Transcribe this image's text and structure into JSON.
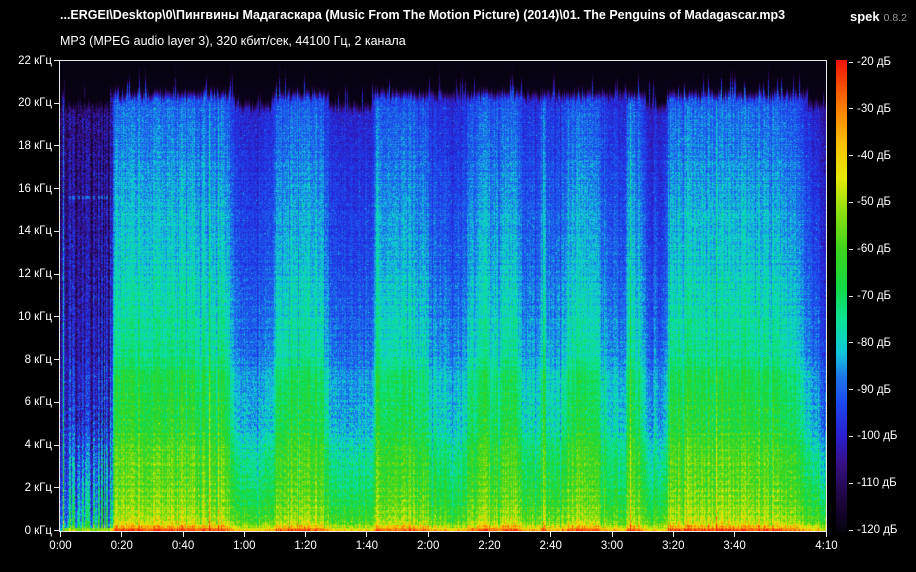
{
  "app": {
    "name": "spek",
    "version": "0.8.2"
  },
  "header": {
    "file_title": "...ERGEI\\Desktop\\0\\Пингвины Мадагаскара (Music From The Motion Picture) (2014)\\01. The Penguins of Madagascar.mp3",
    "format_info": "MP3 (MPEG audio layer 3), 320 кбит/сек, 44100 Гц, 2 канала"
  },
  "colors": {
    "background": "#000000",
    "text": "#ffffff",
    "version_text": "#9a9a9a",
    "axis": "#e9e9e9"
  },
  "chart_data": {
    "type": "heatmap",
    "kind": "audio-spectrogram",
    "title": "",
    "xlabel": "time",
    "ylabel": "frequency",
    "duration_seconds": 250,
    "x_ticks": [
      {
        "label": "0:00",
        "t": 0
      },
      {
        "label": "0:20",
        "t": 20
      },
      {
        "label": "0:40",
        "t": 40
      },
      {
        "label": "1:00",
        "t": 60
      },
      {
        "label": "1:20",
        "t": 80
      },
      {
        "label": "1:40",
        "t": 100
      },
      {
        "label": "2:00",
        "t": 120
      },
      {
        "label": "2:20",
        "t": 140
      },
      {
        "label": "2:40",
        "t": 160
      },
      {
        "label": "3:00",
        "t": 180
      },
      {
        "label": "3:20",
        "t": 200
      },
      {
        "label": "3:40",
        "t": 220
      },
      {
        "label": "4:10",
        "t": 250
      }
    ],
    "y_range_khz": [
      0,
      22
    ],
    "y_ticks": [
      {
        "label": "22 кГц",
        "khz": 22
      },
      {
        "label": "20 кГц",
        "khz": 20
      },
      {
        "label": "18 кГц",
        "khz": 18
      },
      {
        "label": "16 кГц",
        "khz": 16
      },
      {
        "label": "14 кГц",
        "khz": 14
      },
      {
        "label": "12 кГц",
        "khz": 12
      },
      {
        "label": "10 кГц",
        "khz": 10
      },
      {
        "label": "8 кГц",
        "khz": 8
      },
      {
        "label": "6 кГц",
        "khz": 6
      },
      {
        "label": "4 кГц",
        "khz": 4
      },
      {
        "label": "2 кГц",
        "khz": 2
      },
      {
        "label": "0 кГц",
        "khz": 0
      }
    ],
    "db_range": [
      -120,
      -20
    ],
    "db_ticks": [
      {
        "label": "-20 дБ",
        "db": -20
      },
      {
        "label": "-30 дБ",
        "db": -30
      },
      {
        "label": "-40 дБ",
        "db": -40
      },
      {
        "label": "-50 дБ",
        "db": -50
      },
      {
        "label": "-60 дБ",
        "db": -60
      },
      {
        "label": "-70 дБ",
        "db": -70
      },
      {
        "label": "-80 дБ",
        "db": -80
      },
      {
        "label": "-90 дБ",
        "db": -90
      },
      {
        "label": "-100 дБ",
        "db": -100
      },
      {
        "label": "-110 дБ",
        "db": -110
      },
      {
        "label": "-120 дБ",
        "db": -120
      }
    ],
    "palette": [
      [
        0.0,
        "#060210"
      ],
      [
        0.07,
        "#1e0640"
      ],
      [
        0.14,
        "#36107e"
      ],
      [
        0.2,
        "#2a1ecf"
      ],
      [
        0.27,
        "#1c46ee"
      ],
      [
        0.33,
        "#1e78e8"
      ],
      [
        0.38,
        "#10c8dc"
      ],
      [
        0.45,
        "#0ce396"
      ],
      [
        0.52,
        "#12d943"
      ],
      [
        0.6,
        "#3fd41c"
      ],
      [
        0.68,
        "#8fdf10"
      ],
      [
        0.75,
        "#e6ea08"
      ],
      [
        0.82,
        "#f7c305"
      ],
      [
        0.9,
        "#fa7d04"
      ],
      [
        1.0,
        "#f01505"
      ]
    ],
    "loudness_envelope": [
      [
        0,
        0.3
      ],
      [
        1,
        0.72
      ],
      [
        2,
        0.3
      ],
      [
        4,
        0.22
      ],
      [
        8,
        0.2
      ],
      [
        12,
        0.22
      ],
      [
        16,
        0.25
      ],
      [
        17.5,
        0.8
      ],
      [
        20,
        0.88
      ],
      [
        30,
        0.85
      ],
      [
        40,
        0.88
      ],
      [
        50,
        0.84
      ],
      [
        55,
        0.8
      ],
      [
        57,
        0.5
      ],
      [
        60,
        0.44
      ],
      [
        66,
        0.46
      ],
      [
        69,
        0.5
      ],
      [
        71,
        0.82
      ],
      [
        80,
        0.85
      ],
      [
        86,
        0.8
      ],
      [
        88,
        0.46
      ],
      [
        95,
        0.42
      ],
      [
        102,
        0.46
      ],
      [
        103.5,
        0.95
      ],
      [
        105,
        0.78
      ],
      [
        112,
        0.8
      ],
      [
        119,
        0.72
      ],
      [
        121,
        0.58
      ],
      [
        127,
        0.52
      ],
      [
        132,
        0.56
      ],
      [
        134,
        0.78
      ],
      [
        140,
        0.82
      ],
      [
        148,
        0.8
      ],
      [
        151,
        0.55
      ],
      [
        156,
        0.52
      ],
      [
        157.5,
        0.92
      ],
      [
        159,
        0.58
      ],
      [
        163,
        0.55
      ],
      [
        166,
        0.8
      ],
      [
        172,
        0.82
      ],
      [
        177,
        0.7
      ],
      [
        179,
        0.55
      ],
      [
        184,
        0.52
      ],
      [
        185.5,
        0.88
      ],
      [
        187,
        0.78
      ],
      [
        190,
        0.72
      ],
      [
        191.5,
        0.4
      ],
      [
        193.5,
        0.34
      ],
      [
        194.2,
        0.6
      ],
      [
        195,
        0.34
      ],
      [
        197.5,
        0.42
      ],
      [
        199,
        0.82
      ],
      [
        205,
        0.86
      ],
      [
        215,
        0.84
      ],
      [
        225,
        0.86
      ],
      [
        235,
        0.82
      ],
      [
        240,
        0.75
      ],
      [
        243,
        0.55
      ],
      [
        246,
        0.4
      ],
      [
        248,
        0.3
      ],
      [
        250,
        0.2
      ]
    ],
    "freq_profile": [
      [
        0,
        0.96
      ],
      [
        0.15,
        0.88
      ],
      [
        0.5,
        0.76
      ],
      [
        1,
        0.72
      ],
      [
        2,
        0.69
      ],
      [
        3,
        0.67
      ],
      [
        4,
        0.65
      ],
      [
        5,
        0.62
      ],
      [
        6,
        0.6
      ],
      [
        7.5,
        0.57
      ],
      [
        8,
        0.52
      ],
      [
        10,
        0.49
      ],
      [
        12,
        0.45
      ],
      [
        14,
        0.43
      ],
      [
        16,
        0.4
      ],
      [
        18,
        0.37
      ],
      [
        19.5,
        0.35
      ],
      [
        20.5,
        0.33
      ],
      [
        21,
        0.2
      ],
      [
        21.3,
        0.06
      ],
      [
        22,
        0.03
      ]
    ],
    "intro_end_seconds": 17,
    "cutoff_khz": 20.4,
    "seed": 1337
  }
}
